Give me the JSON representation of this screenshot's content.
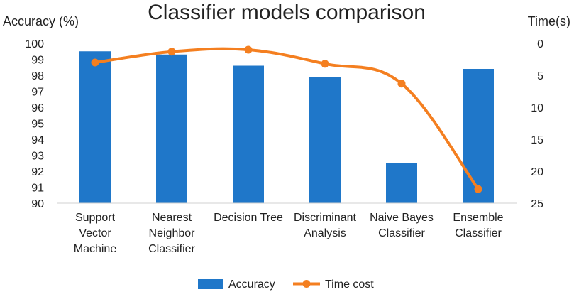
{
  "chart_data": {
    "type": "bar+line",
    "title": "Classifier models comparison",
    "y_left_label": "Accuracy (%)",
    "y_right_label": "Time(s)",
    "y_left_range": [
      90,
      100
    ],
    "y_left_ticks": [
      "90",
      "91",
      "92",
      "93",
      "94",
      "95",
      "96",
      "97",
      "98",
      "99",
      "100"
    ],
    "y_right_range": [
      0,
      25
    ],
    "y_right_inverted": true,
    "y_right_ticks": [
      "0",
      "5",
      "10",
      "15",
      "20",
      "25"
    ],
    "categories": [
      [
        "Support",
        "Vector",
        "Machine"
      ],
      [
        "Nearest",
        "Neighbor",
        "Classifier"
      ],
      [
        "Decision Tree"
      ],
      [
        "Discriminant",
        "Analysis"
      ],
      [
        "Naive Bayes",
        "Classifier"
      ],
      [
        "Ensemble",
        "Classifier"
      ]
    ],
    "series": [
      {
        "name": "Accuracy",
        "type": "bar",
        "axis": "left",
        "color": "#1f77c9",
        "values": [
          99.5,
          99.3,
          98.6,
          97.9,
          92.5,
          98.4
        ]
      },
      {
        "name": "Time cost",
        "type": "line",
        "axis": "right",
        "color": "#f47f20",
        "values": [
          3.0,
          1.3,
          1.0,
          3.2,
          6.3,
          22.8
        ]
      }
    ],
    "grid": false,
    "legend_position": "bottom"
  }
}
